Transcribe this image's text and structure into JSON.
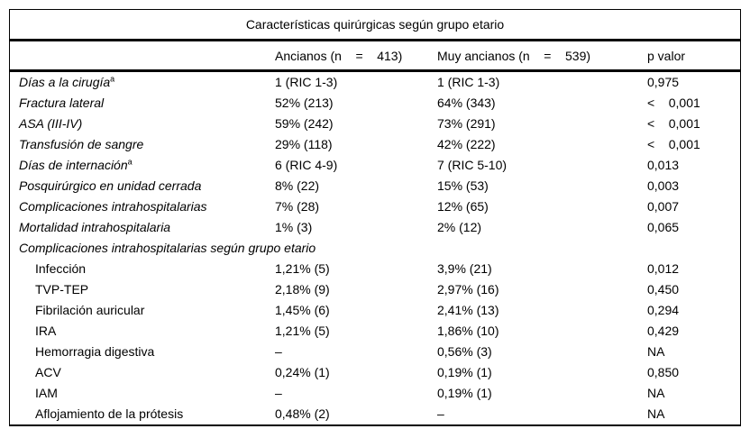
{
  "colors": {
    "text": "#000000",
    "border": "#000000",
    "background": "#ffffff"
  },
  "table": {
    "title": "Características quirúrgicas según grupo etario",
    "columns": {
      "label": "",
      "ancianos": "Ancianos (n    =    413)",
      "muy_ancianos": "Muy ancianos (n    =    539)",
      "p_valor": "p valor"
    },
    "rows_main": [
      {
        "label": "Días a la cirugía",
        "sup": "a",
        "ancianos": "1 (RIC 1-3)",
        "muy_ancianos": "1 (RIC 1-3)",
        "p": "0,975"
      },
      {
        "label": "Fractura lateral",
        "ancianos": "52% (213)",
        "muy_ancianos": "64% (343)",
        "p": "<    0,001"
      },
      {
        "label": "ASA (III-IV)",
        "ancianos": "59% (242)",
        "muy_ancianos": "73% (291)",
        "p": "<    0,001"
      },
      {
        "label": "Transfusión de sangre",
        "ancianos": "29% (118)",
        "muy_ancianos": "42% (222)",
        "p": "<    0,001"
      },
      {
        "label": "Días de internación",
        "sup": "a",
        "ancianos": "6 (RIC 4-9)",
        "muy_ancianos": "7 (RIC 5-10)",
        "p": "0,013"
      },
      {
        "label": "Posquirúrgico en unidad cerrada",
        "ancianos": "8% (22)",
        "muy_ancianos": "15% (53)",
        "p": "0,003"
      },
      {
        "label": "Complicaciones intrahospitalarias",
        "ancianos": "7% (28)",
        "muy_ancianos": "12% (65)",
        "p": "0,007"
      },
      {
        "label": "Mortalidad intrahospitalaria",
        "ancianos": "1% (3)",
        "muy_ancianos": "2% (12)",
        "p": "0,065"
      }
    ],
    "section_header": "Complicaciones intrahospitalarias según grupo etario",
    "rows_complications": [
      {
        "label": "Infección",
        "ancianos": "1,21% (5)",
        "muy_ancianos": "3,9% (21)",
        "p": "0,012"
      },
      {
        "label": "TVP-TEP",
        "ancianos": "2,18% (9)",
        "muy_ancianos": "2,97% (16)",
        "p": "0,450"
      },
      {
        "label": "Fibrilación auricular",
        "ancianos": "1,45% (6)",
        "muy_ancianos": "2,41% (13)",
        "p": "0,294"
      },
      {
        "label": "IRA",
        "ancianos": "1,21% (5)",
        "muy_ancianos": "1,86% (10)",
        "p": "0,429"
      },
      {
        "label": "Hemorragia digestiva",
        "ancianos": "–",
        "muy_ancianos": "0,56% (3)",
        "p": "NA"
      },
      {
        "label": "ACV",
        "ancianos": "0,24% (1)",
        "muy_ancianos": "0,19% (1)",
        "p": "0,850"
      },
      {
        "label": "IAM",
        "ancianos": "–",
        "muy_ancianos": "0,19% (1)",
        "p": "NA"
      },
      {
        "label": "Aflojamiento de la prótesis",
        "ancianos": "0,48% (2)",
        "muy_ancianos": "–",
        "p": "NA"
      }
    ]
  }
}
